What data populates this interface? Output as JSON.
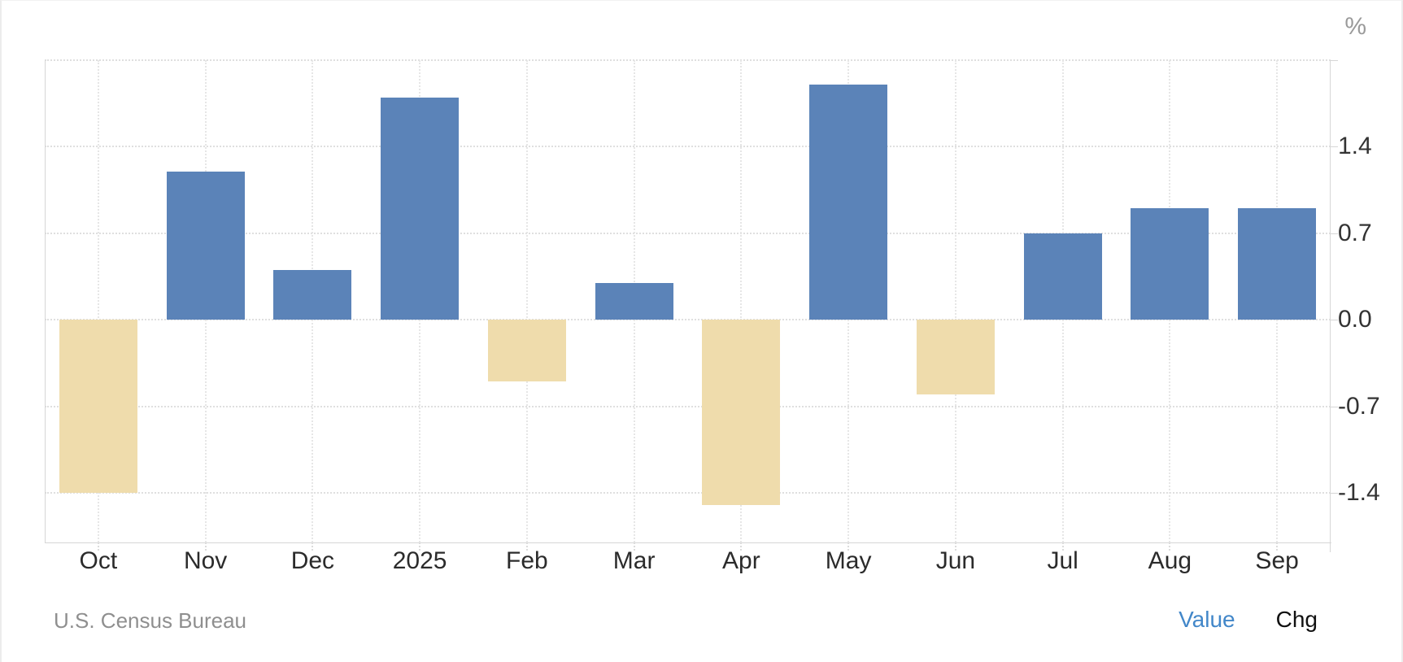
{
  "unit_label": "%",
  "footer": {
    "source": "U.S. Census Bureau",
    "value_label": "Value",
    "chg_label": "Chg"
  },
  "colors": {
    "positive_bar": "#5b83b8",
    "negative_bar": "#efdcac",
    "grid": "#dfdfdf",
    "axis": "#d6d6d6",
    "tick_text": "#333333",
    "muted_text": "#9a9a9a",
    "link_blue": "#4287c9"
  },
  "chart_data": {
    "type": "bar",
    "categories": [
      "Oct",
      "Nov",
      "Dec",
      "2025",
      "Feb",
      "Mar",
      "Apr",
      "May",
      "Jun",
      "Jul",
      "Aug",
      "Sep"
    ],
    "values": [
      -1.4,
      1.2,
      0.4,
      1.8,
      -0.5,
      0.3,
      -1.5,
      1.9,
      -0.6,
      0.7,
      0.9,
      0.9
    ],
    "title": "",
    "xlabel": "",
    "ylabel": "%",
    "ylim": [
      -1.8,
      2.1
    ],
    "yticks": [
      2.1,
      1.4,
      0.7,
      0,
      -0.7,
      -1.4
    ],
    "ytick_labels": [
      "",
      "1.4",
      "0.7",
      "0.0",
      "-0.7",
      "-1.4"
    ],
    "grid": true,
    "legend_position": "none",
    "source": "U.S. Census Bureau"
  }
}
